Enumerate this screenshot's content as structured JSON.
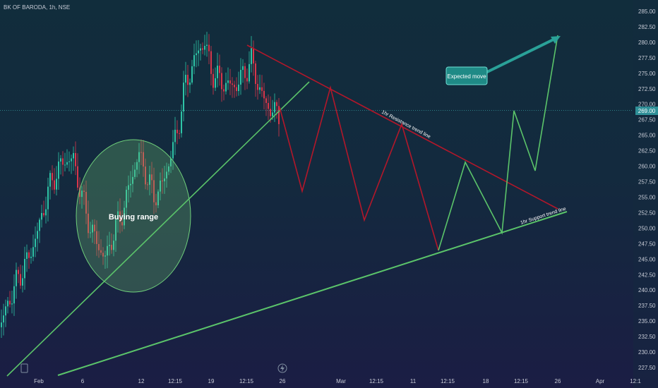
{
  "symbol_title": "BK OF BARODA, 1h, NSE",
  "price_badge": "269.00",
  "chart_data": {
    "type": "candlestick",
    "ylim": [
      226.5,
      286.5
    ],
    "y_ticks": [
      "285.00",
      "282.50",
      "280.00",
      "277.50",
      "275.00",
      "272.50",
      "270.00",
      "267.50",
      "265.00",
      "262.50",
      "260.00",
      "257.50",
      "255.00",
      "252.50",
      "250.00",
      "247.50",
      "245.00",
      "242.50",
      "240.00",
      "237.50",
      "235.00",
      "232.50",
      "230.00",
      "227.50"
    ],
    "x_ticks": [
      "Feb",
      "6",
      "12",
      "12:15",
      "19",
      "12:15",
      "26",
      "Mar",
      "12:15",
      "11",
      "12:15",
      "18",
      "12:15",
      "26",
      "Apr",
      "12:1"
    ],
    "current_price": 269.0,
    "candles_close_path": [
      [
        0,
        234
      ],
      [
        12,
        238
      ],
      [
        26,
        242
      ],
      [
        40,
        245
      ],
      [
        55,
        250
      ],
      [
        68,
        256
      ],
      [
        80,
        259
      ],
      [
        92,
        261
      ],
      [
        104,
        261
      ],
      [
        116,
        255
      ],
      [
        128,
        250
      ],
      [
        140,
        247
      ],
      [
        150,
        245
      ],
      [
        160,
        249
      ],
      [
        172,
        252
      ],
      [
        184,
        257
      ],
      [
        196,
        262
      ],
      [
        206,
        259
      ],
      [
        218,
        255
      ],
      [
        230,
        257
      ],
      [
        240,
        261
      ],
      [
        252,
        266
      ],
      [
        262,
        273
      ],
      [
        272,
        276
      ],
      [
        282,
        279
      ],
      [
        290,
        280
      ],
      [
        300,
        275
      ],
      [
        310,
        274
      ],
      [
        322,
        273
      ],
      [
        334,
        273
      ],
      [
        346,
        275
      ],
      [
        356,
        277
      ],
      [
        366,
        273
      ],
      [
        376,
        270
      ],
      [
        386,
        269
      ],
      [
        396,
        268
      ]
    ],
    "resistance_line": {
      "label": "1hr Resistance trend line",
      "from": [
        0,
        279.8
      ],
      "to": [
        1,
        253
      ]
    },
    "support_line": {
      "label": "1hr Support trend line",
      "from": [
        0,
        226.5
      ],
      "to": [
        1,
        252.8
      ]
    },
    "steep_trendline": {
      "from": [
        0,
        226.5
      ],
      "to": [
        1,
        273.3
      ]
    },
    "bearish_zigzag": [
      [
        267.0
      ],
      [
        256.0
      ],
      [
        272.5
      ],
      [
        251.5
      ],
      [
        266.5
      ],
      [
        246.5
      ]
    ],
    "bullish_zigzag": [
      [
        246.5
      ],
      [
        260.5
      ],
      [
        249.0
      ],
      [
        268.5
      ],
      [
        259.0
      ],
      [
        281.0
      ]
    ],
    "annotations": {
      "buying_range": "Buying range",
      "expected_move": "Expected move"
    }
  }
}
